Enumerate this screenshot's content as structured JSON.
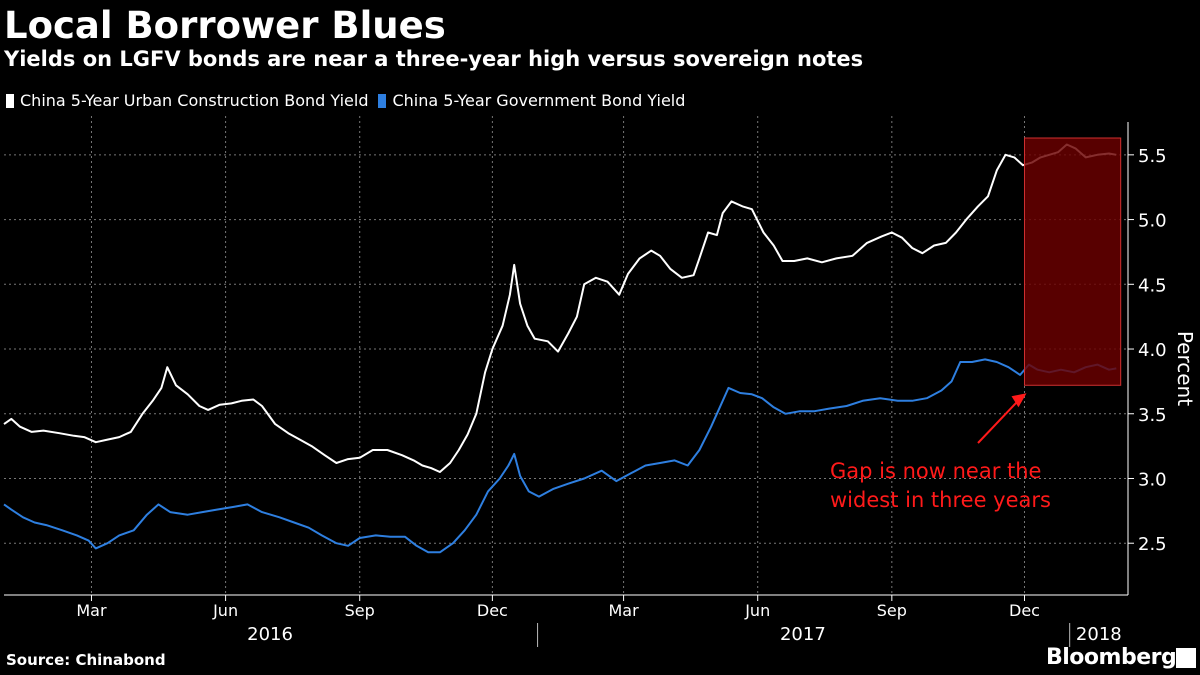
{
  "header": {
    "title": "Local Borrower Blues",
    "subtitle": "Yields on LGFV bonds are near a three-year high versus sovereign notes"
  },
  "footer": {
    "source": "Source: Chinabond",
    "brand": "Bloomberg"
  },
  "colors": {
    "background": "#000000",
    "urban": "#ffffff",
    "government": "#2e7fe0",
    "highlight_fill": "#6b0000",
    "highlight_border": "#d03030",
    "annotation": "#ff1a1a"
  },
  "chart_data": {
    "type": "line",
    "title": "Local Borrower Blues",
    "subtitle": "Yields on LGFV bonds are near a three-year high versus sovereign notes",
    "ylabel": "Percent",
    "ylim": [
      2.1,
      5.8
    ],
    "y_axis_side": "right",
    "yticks": [
      2.5,
      3.0,
      3.5,
      4.0,
      4.5,
      5.0,
      5.5
    ],
    "ytick_labels": [
      "2.5",
      "3.0",
      "3.5",
      "4.0",
      "4.5",
      "5.0",
      "5.5"
    ],
    "xlim": [
      "2016-01-01",
      "2018-02-10"
    ],
    "x_ticks": [
      {
        "date": "2016-03-01",
        "label": "Mar"
      },
      {
        "date": "2016-06-01",
        "label": "Jun"
      },
      {
        "date": "2016-09-01",
        "label": "Sep"
      },
      {
        "date": "2016-12-01",
        "label": "Dec"
      },
      {
        "date": "2017-03-01",
        "label": "Mar"
      },
      {
        "date": "2017-06-01",
        "label": "Jun"
      },
      {
        "date": "2017-09-01",
        "label": "Sep"
      },
      {
        "date": "2017-12-01",
        "label": "Dec"
      }
    ],
    "years": [
      {
        "label": "2016",
        "start": "2016-01-01",
        "end": "2016-12-31"
      },
      {
        "label": "2017",
        "start": "2017-01-01",
        "end": "2017-12-31"
      },
      {
        "label": "2018",
        "start": "2018-01-01",
        "end": "2018-02-10"
      }
    ],
    "grid": true,
    "legend_position": "top-left",
    "series": [
      {
        "name": "China 5-Year Urban Construction Bond Yield",
        "color": "#ffffff",
        "points": [
          [
            "2016-01-01",
            3.42
          ],
          [
            "2016-01-06",
            3.46
          ],
          [
            "2016-01-12",
            3.4
          ],
          [
            "2016-01-20",
            3.36
          ],
          [
            "2016-01-28",
            3.37
          ],
          [
            "2016-02-08",
            3.35
          ],
          [
            "2016-02-18",
            3.33
          ],
          [
            "2016-02-25",
            3.32
          ],
          [
            "2016-03-04",
            3.28
          ],
          [
            "2016-03-12",
            3.3
          ],
          [
            "2016-03-20",
            3.32
          ],
          [
            "2016-03-28",
            3.36
          ],
          [
            "2016-04-05",
            3.5
          ],
          [
            "2016-04-12",
            3.6
          ],
          [
            "2016-04-18",
            3.7
          ],
          [
            "2016-04-22",
            3.86
          ],
          [
            "2016-04-28",
            3.72
          ],
          [
            "2016-05-06",
            3.65
          ],
          [
            "2016-05-14",
            3.56
          ],
          [
            "2016-05-20",
            3.53
          ],
          [
            "2016-05-28",
            3.57
          ],
          [
            "2016-06-05",
            3.58
          ],
          [
            "2016-06-12",
            3.6
          ],
          [
            "2016-06-20",
            3.61
          ],
          [
            "2016-06-26",
            3.56
          ],
          [
            "2016-07-05",
            3.42
          ],
          [
            "2016-07-14",
            3.35
          ],
          [
            "2016-07-22",
            3.3
          ],
          [
            "2016-07-30",
            3.25
          ],
          [
            "2016-08-08",
            3.18
          ],
          [
            "2016-08-16",
            3.12
          ],
          [
            "2016-08-24",
            3.15
          ],
          [
            "2016-09-01",
            3.16
          ],
          [
            "2016-09-10",
            3.22
          ],
          [
            "2016-09-20",
            3.22
          ],
          [
            "2016-09-30",
            3.18
          ],
          [
            "2016-10-08",
            3.14
          ],
          [
            "2016-10-14",
            3.1
          ],
          [
            "2016-10-20",
            3.08
          ],
          [
            "2016-10-26",
            3.05
          ],
          [
            "2016-11-02",
            3.12
          ],
          [
            "2016-11-08",
            3.22
          ],
          [
            "2016-11-14",
            3.34
          ],
          [
            "2016-11-20",
            3.5
          ],
          [
            "2016-11-26",
            3.82
          ],
          [
            "2016-12-01",
            4.0
          ],
          [
            "2016-12-08",
            4.18
          ],
          [
            "2016-12-13",
            4.42
          ],
          [
            "2016-12-16",
            4.65
          ],
          [
            "2016-12-20",
            4.35
          ],
          [
            "2016-12-25",
            4.18
          ],
          [
            "2016-12-30",
            4.08
          ],
          [
            "2017-01-08",
            4.06
          ],
          [
            "2017-01-15",
            3.98
          ],
          [
            "2017-01-22",
            4.12
          ],
          [
            "2017-01-28",
            4.25
          ],
          [
            "2017-02-02",
            4.5
          ],
          [
            "2017-02-10",
            4.55
          ],
          [
            "2017-02-18",
            4.52
          ],
          [
            "2017-02-26",
            4.42
          ],
          [
            "2017-03-04",
            4.58
          ],
          [
            "2017-03-12",
            4.7
          ],
          [
            "2017-03-20",
            4.76
          ],
          [
            "2017-03-26",
            4.72
          ],
          [
            "2017-04-02",
            4.62
          ],
          [
            "2017-04-10",
            4.55
          ],
          [
            "2017-04-18",
            4.57
          ],
          [
            "2017-04-22",
            4.7
          ],
          [
            "2017-04-28",
            4.9
          ],
          [
            "2017-05-04",
            4.88
          ],
          [
            "2017-05-08",
            5.05
          ],
          [
            "2017-05-14",
            5.14
          ],
          [
            "2017-05-22",
            5.1
          ],
          [
            "2017-05-28",
            5.08
          ],
          [
            "2017-06-05",
            4.9
          ],
          [
            "2017-06-12",
            4.8
          ],
          [
            "2017-06-18",
            4.68
          ],
          [
            "2017-06-26",
            4.68
          ],
          [
            "2017-07-05",
            4.7
          ],
          [
            "2017-07-15",
            4.67
          ],
          [
            "2017-07-25",
            4.7
          ],
          [
            "2017-08-05",
            4.72
          ],
          [
            "2017-08-15",
            4.82
          ],
          [
            "2017-08-25",
            4.87
          ],
          [
            "2017-09-01",
            4.9
          ],
          [
            "2017-09-08",
            4.86
          ],
          [
            "2017-09-15",
            4.78
          ],
          [
            "2017-09-22",
            4.74
          ],
          [
            "2017-09-30",
            4.8
          ],
          [
            "2017-10-08",
            4.82
          ],
          [
            "2017-10-15",
            4.9
          ],
          [
            "2017-10-22",
            5.0
          ],
          [
            "2017-10-30",
            5.1
          ],
          [
            "2017-11-06",
            5.18
          ],
          [
            "2017-11-12",
            5.38
          ],
          [
            "2017-11-18",
            5.5
          ],
          [
            "2017-11-24",
            5.48
          ],
          [
            "2017-11-30",
            5.42
          ],
          [
            "2017-12-06",
            5.44
          ],
          [
            "2017-12-12",
            5.48
          ],
          [
            "2017-12-18",
            5.5
          ],
          [
            "2017-12-24",
            5.52
          ],
          [
            "2017-12-30",
            5.58
          ],
          [
            "2018-01-05",
            5.55
          ],
          [
            "2018-01-12",
            5.48
          ],
          [
            "2018-01-20",
            5.5
          ],
          [
            "2018-01-28",
            5.51
          ],
          [
            "2018-02-02",
            5.5
          ]
        ]
      },
      {
        "name": "China 5-Year Government Bond Yield",
        "color": "#2e7fe0",
        "points": [
          [
            "2016-01-01",
            2.8
          ],
          [
            "2016-01-06",
            2.76
          ],
          [
            "2016-01-14",
            2.7
          ],
          [
            "2016-01-22",
            2.66
          ],
          [
            "2016-01-30",
            2.64
          ],
          [
            "2016-02-10",
            2.6
          ],
          [
            "2016-02-20",
            2.56
          ],
          [
            "2016-02-28",
            2.52
          ],
          [
            "2016-03-04",
            2.46
          ],
          [
            "2016-03-12",
            2.5
          ],
          [
            "2016-03-20",
            2.56
          ],
          [
            "2016-03-30",
            2.6
          ],
          [
            "2016-04-08",
            2.72
          ],
          [
            "2016-04-16",
            2.8
          ],
          [
            "2016-04-24",
            2.74
          ],
          [
            "2016-05-06",
            2.72
          ],
          [
            "2016-05-16",
            2.74
          ],
          [
            "2016-05-26",
            2.76
          ],
          [
            "2016-06-06",
            2.78
          ],
          [
            "2016-06-16",
            2.8
          ],
          [
            "2016-06-26",
            2.74
          ],
          [
            "2016-07-08",
            2.7
          ],
          [
            "2016-07-18",
            2.66
          ],
          [
            "2016-07-28",
            2.62
          ],
          [
            "2016-08-06",
            2.56
          ],
          [
            "2016-08-16",
            2.5
          ],
          [
            "2016-08-24",
            2.48
          ],
          [
            "2016-09-01",
            2.54
          ],
          [
            "2016-09-12",
            2.56
          ],
          [
            "2016-09-22",
            2.55
          ],
          [
            "2016-10-02",
            2.55
          ],
          [
            "2016-10-10",
            2.48
          ],
          [
            "2016-10-18",
            2.43
          ],
          [
            "2016-10-26",
            2.43
          ],
          [
            "2016-11-04",
            2.5
          ],
          [
            "2016-11-12",
            2.6
          ],
          [
            "2016-11-20",
            2.72
          ],
          [
            "2016-11-28",
            2.9
          ],
          [
            "2016-12-06",
            3.0
          ],
          [
            "2016-12-12",
            3.1
          ],
          [
            "2016-12-16",
            3.19
          ],
          [
            "2016-12-20",
            3.02
          ],
          [
            "2016-12-26",
            2.9
          ],
          [
            "2017-01-02",
            2.86
          ],
          [
            "2017-01-12",
            2.92
          ],
          [
            "2017-01-22",
            2.96
          ],
          [
            "2017-02-02",
            3.0
          ],
          [
            "2017-02-14",
            3.06
          ],
          [
            "2017-02-24",
            2.98
          ],
          [
            "2017-03-06",
            3.04
          ],
          [
            "2017-03-16",
            3.1
          ],
          [
            "2017-03-26",
            3.12
          ],
          [
            "2017-04-05",
            3.14
          ],
          [
            "2017-04-14",
            3.1
          ],
          [
            "2017-04-22",
            3.22
          ],
          [
            "2017-04-30",
            3.4
          ],
          [
            "2017-05-06",
            3.55
          ],
          [
            "2017-05-12",
            3.7
          ],
          [
            "2017-05-20",
            3.66
          ],
          [
            "2017-05-28",
            3.65
          ],
          [
            "2017-06-04",
            3.62
          ],
          [
            "2017-06-12",
            3.55
          ],
          [
            "2017-06-20",
            3.5
          ],
          [
            "2017-06-30",
            3.52
          ],
          [
            "2017-07-10",
            3.52
          ],
          [
            "2017-07-20",
            3.54
          ],
          [
            "2017-08-01",
            3.56
          ],
          [
            "2017-08-12",
            3.6
          ],
          [
            "2017-08-24",
            3.62
          ],
          [
            "2017-09-05",
            3.6
          ],
          [
            "2017-09-15",
            3.6
          ],
          [
            "2017-09-25",
            3.62
          ],
          [
            "2017-10-05",
            3.68
          ],
          [
            "2017-10-12",
            3.75
          ],
          [
            "2017-10-18",
            3.9
          ],
          [
            "2017-10-26",
            3.9
          ],
          [
            "2017-11-04",
            3.92
          ],
          [
            "2017-11-12",
            3.9
          ],
          [
            "2017-11-20",
            3.86
          ],
          [
            "2017-11-28",
            3.8
          ],
          [
            "2017-12-04",
            3.88
          ],
          [
            "2017-12-10",
            3.84
          ],
          [
            "2017-12-18",
            3.82
          ],
          [
            "2017-12-26",
            3.84
          ],
          [
            "2018-01-04",
            3.82
          ],
          [
            "2018-01-12",
            3.86
          ],
          [
            "2018-01-20",
            3.88
          ],
          [
            "2018-01-28",
            3.84
          ],
          [
            "2018-02-02",
            3.85
          ]
        ]
      }
    ],
    "highlight_range": {
      "start": "2017-12-01",
      "end": "2018-02-05",
      "y_low": 3.72,
      "y_high": 5.63
    },
    "annotation": {
      "lines": [
        "Gap is now near the",
        "widest in three years"
      ]
    }
  }
}
